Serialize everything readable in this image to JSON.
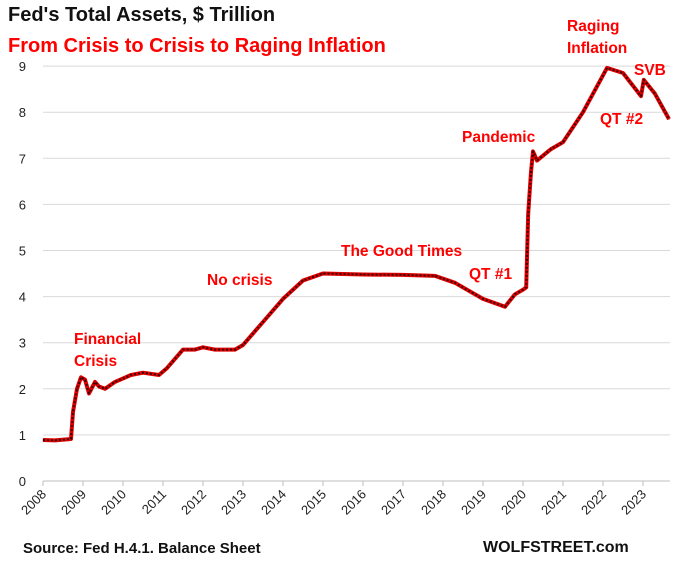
{
  "chart_data": {
    "type": "line",
    "title": "Fed's Total Assets, $ Trillion",
    "subtitle": "From Crisis to Crisis to Raging Inflation",
    "xlabel": "",
    "ylabel": "",
    "xlim": [
      2008,
      2023.7
    ],
    "ylim": [
      0,
      9
    ],
    "grid": true,
    "x_ticks": [
      "2008",
      "2009",
      "2010",
      "2011",
      "2012",
      "2013",
      "2014",
      "2015",
      "2016",
      "2017",
      "2018",
      "2019",
      "2020",
      "2021",
      "2022",
      "2023"
    ],
    "y_ticks": [
      "0",
      "1",
      "2",
      "3",
      "4",
      "5",
      "6",
      "7",
      "8",
      "9"
    ],
    "series": [
      {
        "color": "#e00000",
        "x": [
          2008.0,
          2008.3,
          2008.7,
          2008.75,
          2008.85,
          2008.95,
          2009.05,
          2009.15,
          2009.3,
          2009.4,
          2009.55,
          2009.8,
          2010.2,
          2010.5,
          2010.9,
          2011.1,
          2011.5,
          2011.8,
          2012.0,
          2012.3,
          2012.8,
          2013.0,
          2013.5,
          2014.0,
          2014.5,
          2015.0,
          2016.0,
          2017.0,
          2017.8,
          2018.3,
          2019.0,
          2019.55,
          2019.8,
          2020.0,
          2020.08,
          2020.13,
          2020.2,
          2020.25,
          2020.35,
          2020.7,
          2021.0,
          2021.5,
          2022.1,
          2022.5,
          2022.95,
          2023.02,
          2023.3,
          2023.65
        ],
        "y": [
          0.89,
          0.88,
          0.91,
          1.5,
          2.0,
          2.25,
          2.2,
          1.9,
          2.15,
          2.05,
          2.0,
          2.15,
          2.3,
          2.35,
          2.3,
          2.45,
          2.85,
          2.85,
          2.9,
          2.85,
          2.85,
          2.95,
          3.45,
          3.95,
          4.35,
          4.5,
          4.48,
          4.47,
          4.45,
          4.3,
          3.95,
          3.78,
          4.05,
          4.15,
          4.2,
          5.8,
          6.7,
          7.15,
          6.95,
          7.2,
          7.35,
          8.0,
          8.96,
          8.85,
          8.35,
          8.7,
          8.4,
          7.85
        ]
      }
    ],
    "annotations": [
      {
        "text": "Financial Crisis",
        "lines": [
          "Financial",
          "Crisis"
        ]
      },
      {
        "text": "No crisis"
      },
      {
        "text": "The Good Times"
      },
      {
        "text": "QT #1"
      },
      {
        "text": "Pandemic"
      },
      {
        "text": "Raging Inflation",
        "lines": [
          "Raging",
          "Inflation"
        ]
      },
      {
        "text": "SVB"
      },
      {
        "text": "QT #2"
      }
    ]
  },
  "footer": {
    "source": "Source: Fed H.4.1. Balance Sheet",
    "brand": "WOLFSTREET.com"
  }
}
